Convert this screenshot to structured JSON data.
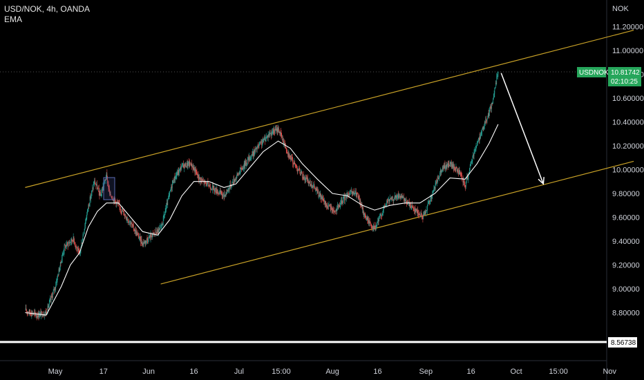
{
  "header": {
    "symbol_line": "USD/NOK, 4h, OANDA",
    "indicator": "EMA"
  },
  "price_axis": {
    "currency_label": "NOK"
  },
  "price_tag": {
    "symbol": "USDNOK",
    "price": "10.81742",
    "countdown": "02:10:25",
    "color": "#26a65b"
  },
  "support_tag": {
    "price": "8.56738"
  },
  "colors": {
    "background": "#000000",
    "bull": "#26a69a",
    "bear": "#ef5350",
    "ema": "#ffffff",
    "channel": "#c9a227",
    "arrow": "#ffffff",
    "support_line": "#ffffff"
  },
  "chart_data": {
    "type": "candlestick",
    "symbol": "USD/NOK",
    "timeframe": "4h",
    "exchange": "OANDA",
    "y_unit": "NOK",
    "ylim": [
      8.56,
      11.3
    ],
    "yticks": [
      "11.20000",
      "11.00000",
      "10.80000",
      "10.60000",
      "10.40000",
      "10.20000",
      "10.00000",
      "9.80000",
      "9.60000",
      "9.40000",
      "9.20000",
      "9.00000",
      "8.80000"
    ],
    "yticks_values": [
      11.2,
      11.0,
      10.8,
      10.6,
      10.4,
      10.2,
      10.0,
      9.8,
      9.6,
      9.4,
      9.2,
      9.0,
      8.8
    ],
    "xticks": [
      "May",
      "17",
      "Jun",
      "16",
      "Jul",
      "15:00",
      "Aug",
      "16",
      "Sep",
      "16",
      "Oct",
      "15:00",
      "Nov"
    ],
    "last_price": 10.81742,
    "support_level": 8.56738,
    "close_path": [
      [
        "2021-04-21",
        8.82
      ],
      [
        "2021-04-25",
        8.78
      ],
      [
        "2021-04-28",
        8.8
      ],
      [
        "2021-05-01",
        9.02
      ],
      [
        "2021-05-04",
        9.35
      ],
      [
        "2021-05-07",
        9.42
      ],
      [
        "2021-05-09",
        9.28
      ],
      [
        "2021-05-12",
        9.7
      ],
      [
        "2021-05-14",
        9.9
      ],
      [
        "2021-05-16",
        9.78
      ],
      [
        "2021-05-18",
        9.95
      ],
      [
        "2021-05-19",
        9.8
      ],
      [
        "2021-05-22",
        9.7
      ],
      [
        "2021-05-26",
        9.55
      ],
      [
        "2021-05-30",
        9.38
      ],
      [
        "2021-06-02",
        9.45
      ],
      [
        "2021-06-05",
        9.5
      ],
      [
        "2021-06-09",
        9.9
      ],
      [
        "2021-06-12",
        10.03
      ],
      [
        "2021-06-15",
        10.05
      ],
      [
        "2021-06-18",
        9.92
      ],
      [
        "2021-06-22",
        9.85
      ],
      [
        "2021-06-26",
        9.78
      ],
      [
        "2021-06-29",
        9.9
      ],
      [
        "2021-07-03",
        10.05
      ],
      [
        "2021-07-07",
        10.18
      ],
      [
        "2021-07-11",
        10.3
      ],
      [
        "2021-07-14",
        10.34
      ],
      [
        "2021-07-18",
        10.1
      ],
      [
        "2021-07-22",
        9.95
      ],
      [
        "2021-07-26",
        9.85
      ],
      [
        "2021-07-30",
        9.7
      ],
      [
        "2021-08-02",
        9.65
      ],
      [
        "2021-08-06",
        9.8
      ],
      [
        "2021-08-09",
        9.8
      ],
      [
        "2021-08-12",
        9.6
      ],
      [
        "2021-08-15",
        9.5
      ],
      [
        "2021-08-19",
        9.73
      ],
      [
        "2021-08-23",
        9.78
      ],
      [
        "2021-08-27",
        9.7
      ],
      [
        "2021-08-31",
        9.6
      ],
      [
        "2021-09-03",
        9.78
      ],
      [
        "2021-09-06",
        10.0
      ],
      [
        "2021-09-09",
        10.05
      ],
      [
        "2021-09-12",
        9.98
      ],
      [
        "2021-09-14",
        9.86
      ],
      [
        "2021-09-17",
        10.15
      ],
      [
        "2021-09-20",
        10.35
      ],
      [
        "2021-09-23",
        10.55
      ],
      [
        "2021-09-25",
        10.83
      ]
    ],
    "ema_path": [
      [
        "2021-04-21",
        8.8
      ],
      [
        "2021-04-28",
        8.78
      ],
      [
        "2021-05-03",
        9.02
      ],
      [
        "2021-05-06",
        9.2
      ],
      [
        "2021-05-09",
        9.3
      ],
      [
        "2021-05-12",
        9.52
      ],
      [
        "2021-05-15",
        9.65
      ],
      [
        "2021-05-18",
        9.72
      ],
      [
        "2021-05-22",
        9.72
      ],
      [
        "2021-05-26",
        9.6
      ],
      [
        "2021-05-30",
        9.48
      ],
      [
        "2021-06-04",
        9.45
      ],
      [
        "2021-06-08",
        9.58
      ],
      [
        "2021-06-12",
        9.78
      ],
      [
        "2021-06-16",
        9.9
      ],
      [
        "2021-06-21",
        9.9
      ],
      [
        "2021-06-26",
        9.85
      ],
      [
        "2021-06-30",
        9.88
      ],
      [
        "2021-07-04",
        10.0
      ],
      [
        "2021-07-09",
        10.15
      ],
      [
        "2021-07-14",
        10.24
      ],
      [
        "2021-07-18",
        10.18
      ],
      [
        "2021-07-22",
        10.05
      ],
      [
        "2021-07-27",
        9.92
      ],
      [
        "2021-08-01",
        9.8
      ],
      [
        "2021-08-06",
        9.78
      ],
      [
        "2021-08-11",
        9.7
      ],
      [
        "2021-08-15",
        9.66
      ],
      [
        "2021-08-20",
        9.7
      ],
      [
        "2021-08-25",
        9.72
      ],
      [
        "2021-08-30",
        9.72
      ],
      [
        "2021-09-04",
        9.8
      ],
      [
        "2021-09-09",
        9.93
      ],
      [
        "2021-09-14",
        9.92
      ],
      [
        "2021-09-18",
        10.05
      ],
      [
        "2021-09-22",
        10.22
      ],
      [
        "2021-09-25",
        10.38
      ]
    ],
    "upper_channel": [
      [
        "2021-04-21",
        9.85
      ],
      [
        "2021-11-09",
        11.17
      ]
    ],
    "lower_channel": [
      [
        "2021-06-05",
        9.04
      ],
      [
        "2021-11-09",
        10.07
      ]
    ],
    "projection_arrow": [
      [
        "2021-09-26",
        10.81
      ],
      [
        "2021-10-10",
        9.88
      ]
    ]
  }
}
